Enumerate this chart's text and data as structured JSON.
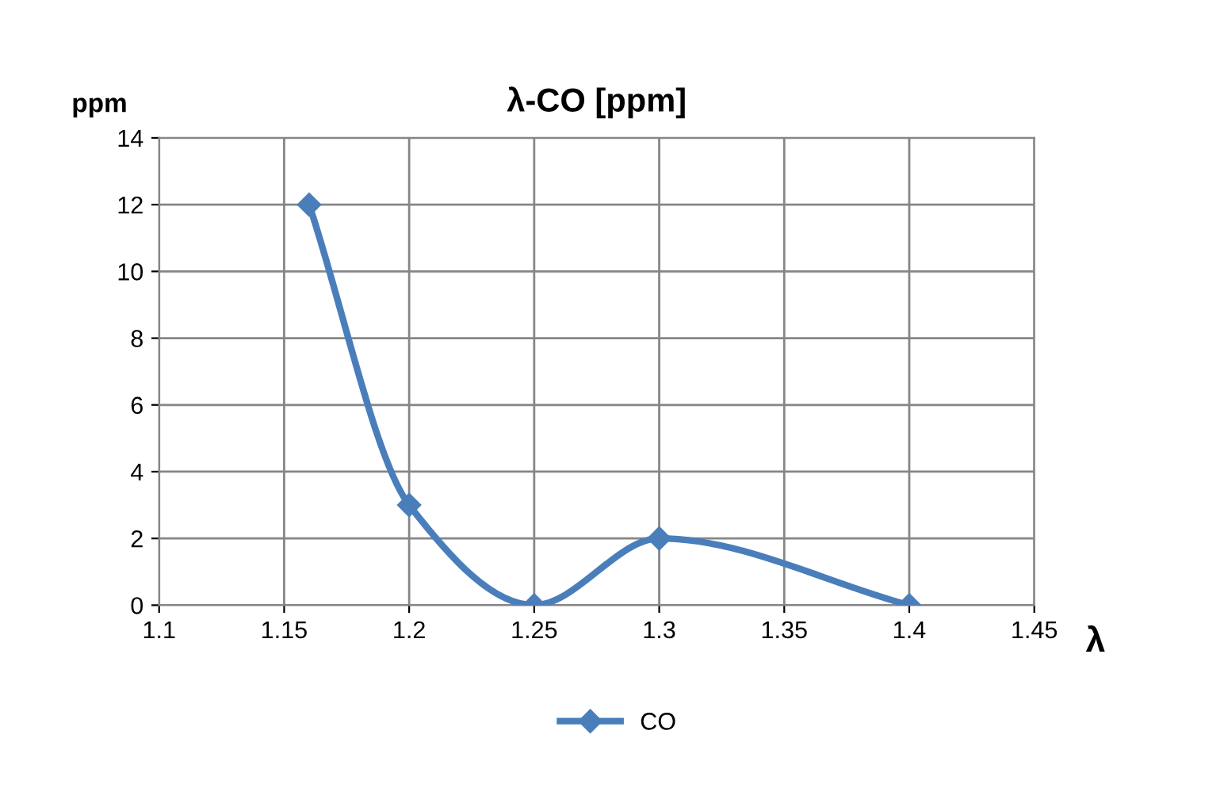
{
  "chart_data": {
    "type": "line",
    "title": "λ-CO [ppm]",
    "xlabel": "λ",
    "ylabel": "ppm",
    "series": [
      {
        "name": "CO",
        "color": "#4a7ebb",
        "x": [
          1.16,
          1.2,
          1.25,
          1.3,
          1.4
        ],
        "values": [
          12,
          3,
          0,
          2,
          0
        ]
      }
    ],
    "xlim": [
      1.1,
      1.45
    ],
    "xticks": [
      1.1,
      1.15,
      1.2,
      1.25,
      1.3,
      1.35,
      1.4,
      1.45
    ],
    "ylim": [
      0,
      14
    ],
    "yticks": [
      0,
      2,
      4,
      6,
      8,
      10,
      12,
      14
    ],
    "grid": true,
    "legend": "bottom",
    "marker": "diamond",
    "line_style": "solid"
  }
}
